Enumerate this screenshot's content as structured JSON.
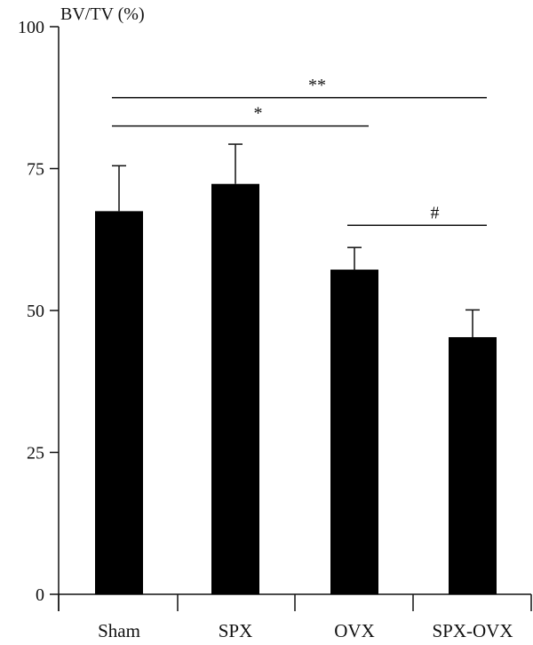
{
  "chart_data": {
    "type": "bar",
    "title": "",
    "ylabel": "BV/TV (%)",
    "xlabel": "",
    "ylim": [
      0,
      100
    ],
    "yticks": [
      0,
      25,
      50,
      75,
      100
    ],
    "categories": [
      "Sham",
      "SPX",
      "OVX",
      "SPX-OVX"
    ],
    "values": [
      67.5,
      72.3,
      57.2,
      45.3
    ],
    "errors": [
      8.0,
      7.0,
      3.9,
      4.8
    ],
    "bar_color": "#000000",
    "significance": [
      {
        "from": 0,
        "to": 3,
        "label": "**",
        "y": 87.5
      },
      {
        "from": 0,
        "to": 2,
        "label": "*",
        "y": 82.5
      },
      {
        "from": 2,
        "to": 3,
        "label": "#",
        "y": 65.0
      }
    ]
  }
}
